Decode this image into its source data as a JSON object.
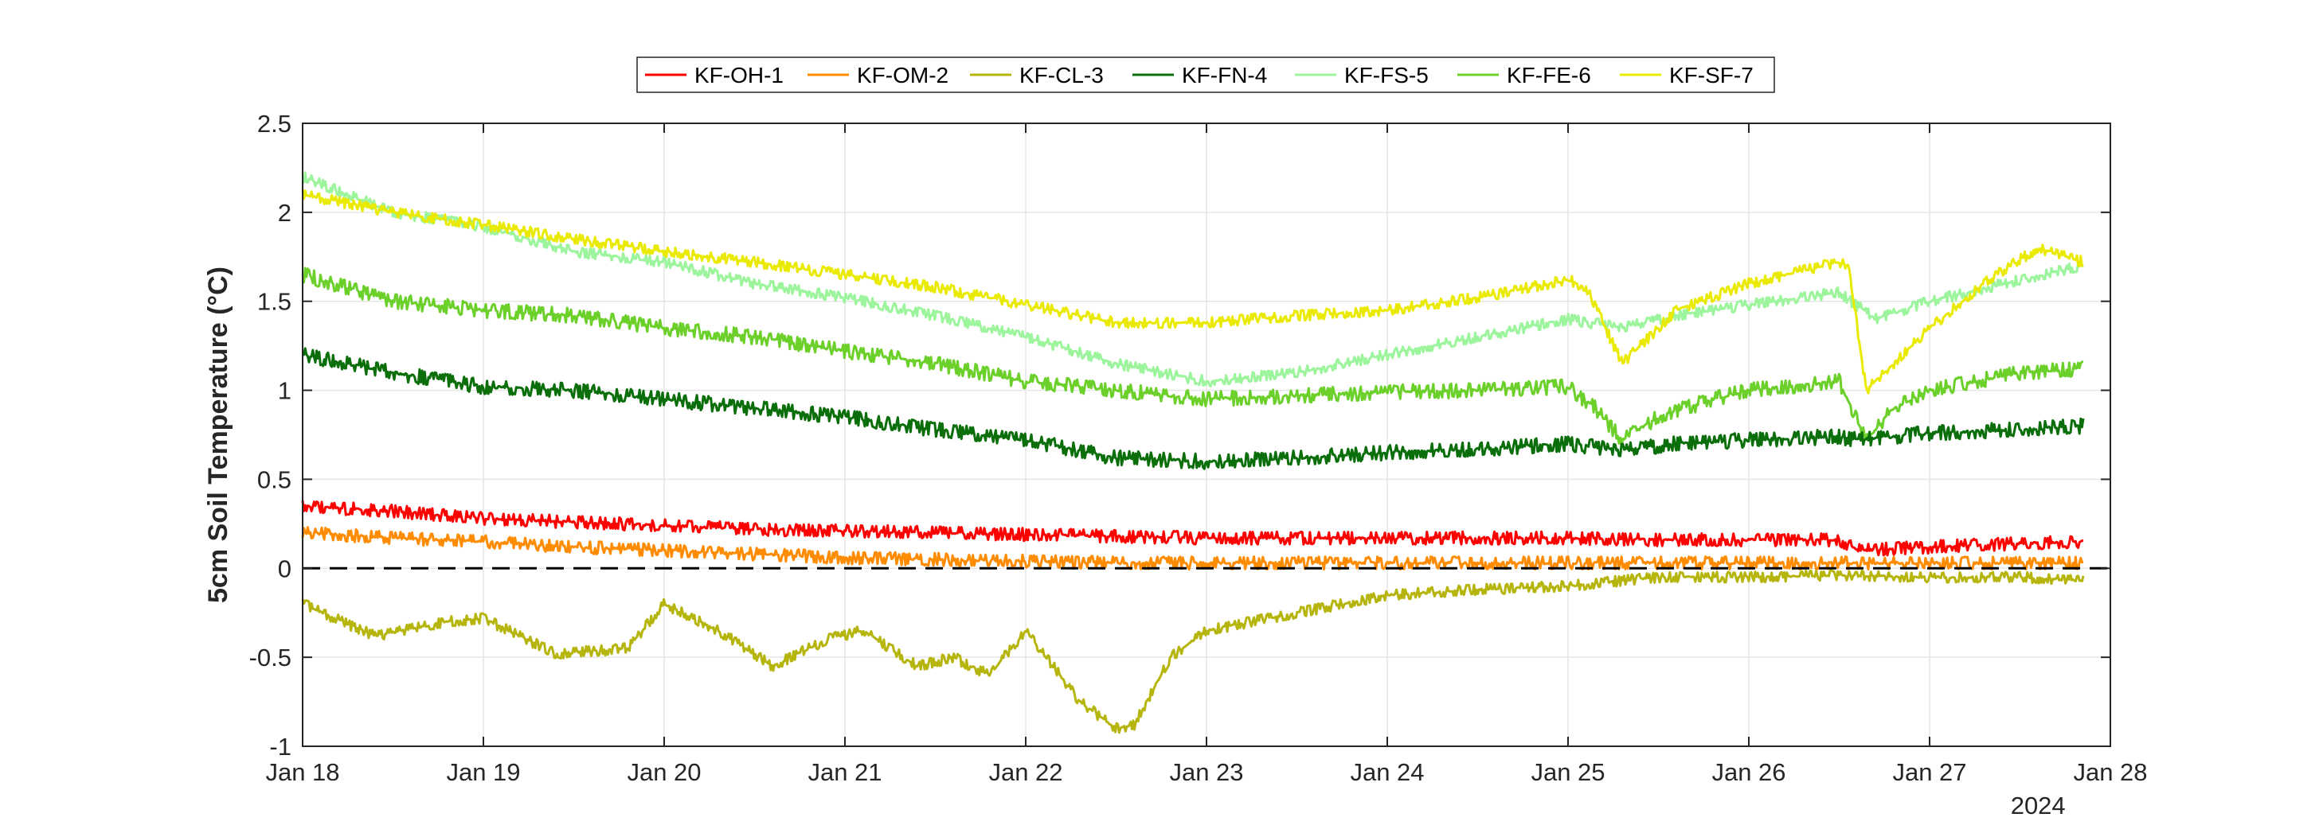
{
  "chart_data": {
    "type": "line",
    "ylabel": "5cm Soil Temperature (°C)",
    "xlabel": "",
    "year_label": "2024",
    "x_ticks": [
      "Jan 18",
      "Jan 19",
      "Jan 20",
      "Jan 21",
      "Jan 22",
      "Jan 23",
      "Jan 24",
      "Jan 25",
      "Jan 26",
      "Jan 27",
      "Jan 28"
    ],
    "x_tick_days": [
      18,
      19,
      20,
      21,
      22,
      23,
      24,
      25,
      26,
      27,
      28
    ],
    "xlim_days": [
      18,
      28
    ],
    "ylim": [
      -1,
      2.5
    ],
    "y_ticks": [
      -1,
      -0.5,
      0,
      0.5,
      1,
      1.5,
      2,
      2.5
    ],
    "grid": true,
    "legend_position": "top-center",
    "reference_line": {
      "y": 0,
      "style": "dashed",
      "color": "#000000"
    },
    "x_unit": "day of January 2024",
    "series": [
      {
        "name": "KF-OH-1",
        "color": "#ff0000",
        "noise": 0.06,
        "x": [
          18.0,
          18.5,
          19.0,
          19.5,
          20.0,
          20.5,
          21.0,
          21.5,
          22.0,
          22.5,
          23.0,
          23.5,
          24.0,
          24.5,
          25.0,
          25.5,
          26.0,
          26.5,
          26.6,
          27.0,
          27.5,
          27.85
        ],
        "y": [
          0.35,
          0.32,
          0.28,
          0.26,
          0.24,
          0.22,
          0.21,
          0.2,
          0.19,
          0.18,
          0.17,
          0.17,
          0.17,
          0.17,
          0.17,
          0.16,
          0.16,
          0.16,
          0.1,
          0.12,
          0.14,
          0.15
        ]
      },
      {
        "name": "KF-OM-2",
        "color": "#ff8c00",
        "noise": 0.06,
        "x": [
          18.0,
          18.5,
          19.0,
          19.5,
          20.0,
          20.5,
          21.0,
          21.5,
          22.0,
          22.5,
          23.0,
          23.5,
          24.0,
          24.5,
          25.0,
          25.5,
          26.0,
          26.5,
          27.0,
          27.5,
          27.85
        ],
        "y": [
          0.2,
          0.17,
          0.15,
          0.12,
          0.1,
          0.08,
          0.06,
          0.05,
          0.04,
          0.03,
          0.03,
          0.03,
          0.03,
          0.03,
          0.03,
          0.03,
          0.03,
          0.03,
          0.03,
          0.03,
          0.03
        ]
      },
      {
        "name": "KF-CL-3",
        "color": "#b5b50e",
        "noise": 0.05,
        "x": [
          18.0,
          18.4,
          18.8,
          19.0,
          19.4,
          19.8,
          20.0,
          20.3,
          20.6,
          20.9,
          21.1,
          21.4,
          21.6,
          21.8,
          22.0,
          22.3,
          22.5,
          22.6,
          22.8,
          23.0,
          23.5,
          24.0,
          24.5,
          25.0,
          25.5,
          26.0,
          26.5,
          27.0,
          27.5,
          27.85
        ],
        "y": [
          -0.2,
          -0.38,
          -0.3,
          -0.28,
          -0.48,
          -0.45,
          -0.2,
          -0.35,
          -0.55,
          -0.4,
          -0.35,
          -0.55,
          -0.5,
          -0.6,
          -0.35,
          -0.75,
          -0.9,
          -0.88,
          -0.5,
          -0.35,
          -0.25,
          -0.15,
          -0.12,
          -0.1,
          -0.05,
          -0.05,
          -0.04,
          -0.05,
          -0.05,
          -0.07
        ]
      },
      {
        "name": "KF-FN-4",
        "color": "#0a6e0a",
        "noise": 0.07,
        "x": [
          18.0,
          18.5,
          19.0,
          19.5,
          20.0,
          20.5,
          21.0,
          21.5,
          22.0,
          22.5,
          23.0,
          23.5,
          24.0,
          24.5,
          25.0,
          25.3,
          25.6,
          26.0,
          26.5,
          26.6,
          27.0,
          27.5,
          27.85
        ],
        "y": [
          1.2,
          1.1,
          1.02,
          1.0,
          0.95,
          0.9,
          0.85,
          0.78,
          0.72,
          0.62,
          0.6,
          0.62,
          0.65,
          0.67,
          0.7,
          0.66,
          0.7,
          0.72,
          0.74,
          0.72,
          0.76,
          0.78,
          0.8
        ]
      },
      {
        "name": "KF-FS-5",
        "color": "#9cf59c",
        "noise": 0.05,
        "x": [
          18.0,
          18.5,
          19.0,
          19.5,
          20.0,
          20.5,
          21.0,
          21.5,
          22.0,
          22.5,
          23.0,
          23.5,
          24.0,
          24.5,
          25.0,
          25.3,
          25.6,
          26.0,
          26.5,
          26.7,
          27.0,
          27.5,
          27.85
        ],
        "y": [
          2.2,
          2.0,
          1.92,
          1.78,
          1.72,
          1.6,
          1.52,
          1.42,
          1.3,
          1.15,
          1.05,
          1.1,
          1.2,
          1.3,
          1.4,
          1.35,
          1.42,
          1.48,
          1.55,
          1.4,
          1.5,
          1.62,
          1.7
        ]
      },
      {
        "name": "KF-FE-6",
        "color": "#6cd02a",
        "noise": 0.07,
        "x": [
          18.0,
          18.5,
          19.0,
          19.5,
          20.0,
          20.5,
          21.0,
          21.5,
          22.0,
          22.5,
          23.0,
          23.5,
          24.0,
          24.5,
          25.0,
          25.15,
          25.3,
          25.5,
          25.8,
          26.0,
          26.5,
          26.65,
          26.8,
          27.0,
          27.5,
          27.85
        ],
        "y": [
          1.65,
          1.5,
          1.45,
          1.42,
          1.35,
          1.3,
          1.22,
          1.15,
          1.05,
          1.0,
          0.95,
          0.97,
          0.99,
          1.0,
          1.02,
          0.9,
          0.72,
          0.85,
          0.95,
          1.0,
          1.05,
          0.72,
          0.9,
          1.0,
          1.1,
          1.12
        ]
      },
      {
        "name": "KF-SF-7",
        "color": "#eaea00",
        "noise": 0.05,
        "x": [
          18.0,
          18.5,
          19.0,
          19.5,
          20.0,
          20.5,
          21.0,
          21.5,
          22.0,
          22.5,
          23.0,
          23.5,
          24.0,
          24.5,
          25.0,
          25.1,
          25.3,
          25.45,
          25.6,
          26.0,
          26.5,
          26.55,
          26.65,
          26.8,
          27.0,
          27.3,
          27.6,
          27.85
        ],
        "y": [
          2.1,
          2.0,
          1.93,
          1.85,
          1.78,
          1.72,
          1.65,
          1.58,
          1.48,
          1.38,
          1.38,
          1.42,
          1.45,
          1.52,
          1.62,
          1.58,
          1.15,
          1.3,
          1.45,
          1.6,
          1.72,
          1.7,
          1.0,
          1.15,
          1.35,
          1.6,
          1.8,
          1.72
        ]
      }
    ]
  }
}
